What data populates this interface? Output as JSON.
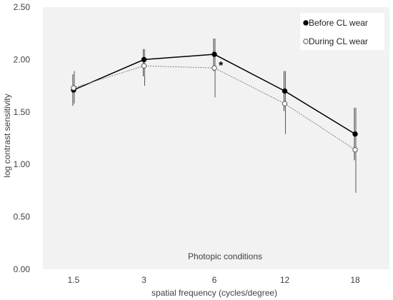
{
  "chart_data": {
    "type": "line",
    "categories": [
      "1.5",
      "3",
      "6",
      "12",
      "18"
    ],
    "xlabel": "spatial frequency (cycles/degree)",
    "ylabel": "log contrast sensitivity",
    "ylim": [
      0,
      2.5
    ],
    "yticks": [
      "0.00",
      "0.50",
      "1.00",
      "1.50",
      "2.00",
      "2.50"
    ],
    "series": [
      {
        "name": "Before CL wear",
        "values": [
          1.71,
          2.0,
          2.05,
          1.7,
          1.29
        ],
        "err_low": [
          1.56,
          1.84,
          1.89,
          1.51,
          1.04
        ],
        "err_high": [
          1.86,
          2.1,
          2.2,
          1.89,
          1.54
        ],
        "color": "#000000",
        "marker": "filled",
        "line": "solid"
      },
      {
        "name": "During CL wear",
        "values": [
          1.73,
          1.94,
          1.92,
          1.58,
          1.14
        ],
        "err_low": [
          1.58,
          1.75,
          1.64,
          1.29,
          0.73
        ],
        "err_high": [
          1.89,
          2.1,
          2.2,
          1.89,
          1.54
        ],
        "color": "#7f7f7f",
        "marker": "open",
        "line": "dotted"
      }
    ],
    "annotations": {
      "condition": "Photopic conditions",
      "significance_marker": "*"
    },
    "grid": false,
    "legend_position": "top-right",
    "plot_background": "#f2f2f2"
  }
}
